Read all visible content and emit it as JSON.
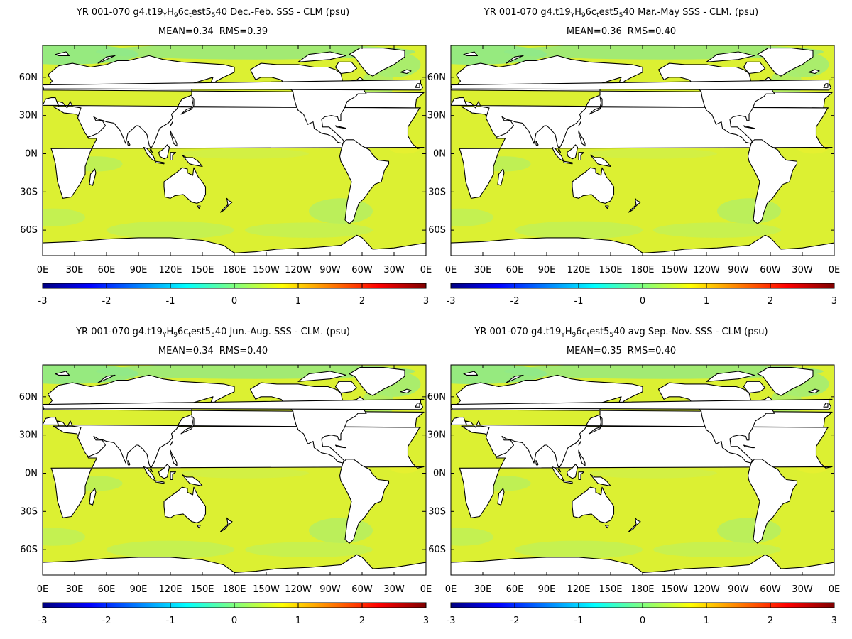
{
  "panels": [
    {
      "title_prefix": "YR 001-070 g4.t19",
      "title_sub1": "Y",
      "title_mid1": "H",
      "title_sub2": "9",
      "title_mid2": "6c",
      "title_sub3": "t",
      "title_mid3": "est5",
      "title_sub4": "5",
      "title_suffix": "40  Dec.-Feb. SSS - CLM (psu)",
      "mean": "MEAN=0.34",
      "rms": "RMS=0.39"
    },
    {
      "title_prefix": "YR 001-070 g4.t19",
      "title_sub1": "Y",
      "title_mid1": "H",
      "title_sub2": "9",
      "title_mid2": "6c",
      "title_sub3": "t",
      "title_mid3": "est5",
      "title_sub4": "5",
      "title_suffix": "40 Mar.-May SSS - CLM. (psu)",
      "mean": "MEAN=0.36",
      "rms": "RMS=0.40"
    },
    {
      "title_prefix": "YR 001-070 g4.t19",
      "title_sub1": "Y",
      "title_mid1": "H",
      "title_sub2": "9",
      "title_mid2": "6c",
      "title_sub3": "t",
      "title_mid3": "est5",
      "title_sub4": "5",
      "title_suffix": "40 Jun.-Aug. SSS - CLM. (psu)",
      "mean": "MEAN=0.34",
      "rms": "RMS=0.40"
    },
    {
      "title_prefix": "YR 001-070 g4.t19",
      "title_sub1": "Y",
      "title_mid1": "H",
      "title_sub2": "9",
      "title_mid2": "6c",
      "title_sub3": "t",
      "title_mid3": "est5",
      "title_sub4": "5",
      "title_suffix": "40 avg Sep.-Nov. SSS - CLM (psu)",
      "mean": "MEAN=0.35",
      "rms": "RMS=0.40"
    }
  ],
  "map": {
    "lat_labels": [
      "60N",
      "30N",
      "0N",
      "30S",
      "60S"
    ],
    "lon_labels": [
      "0E",
      "30E",
      "60E",
      "90E",
      "120E",
      "150E",
      "180E",
      "150W",
      "120W",
      "90W",
      "60W",
      "30W",
      "0E"
    ],
    "ocean_color": "#dcf032",
    "land_color": "#ffffff",
    "coast_color": "#000000"
  },
  "colorbar": {
    "labels": [
      "-3",
      "-2",
      "-1",
      "0",
      "1",
      "2",
      "3"
    ],
    "range": [
      -3,
      3
    ],
    "colormap": [
      "#00007f",
      "#0000ff",
      "#007fff",
      "#00ffff",
      "#7fff7f",
      "#ffff00",
      "#ff7f00",
      "#ff0000",
      "#7f0000"
    ]
  }
}
